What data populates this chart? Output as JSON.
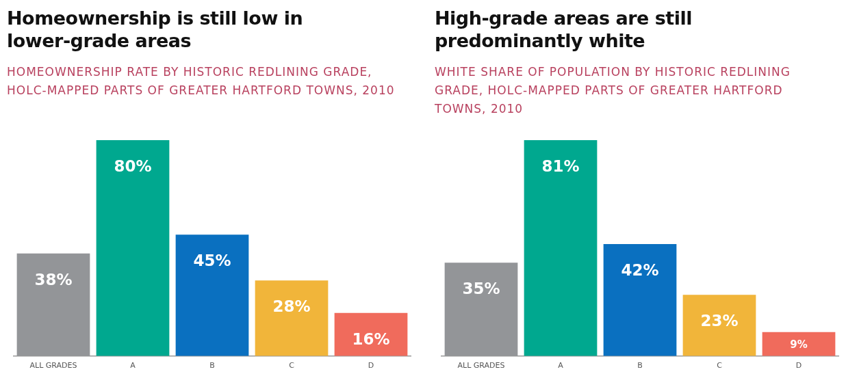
{
  "chart_data": [
    {
      "type": "bar",
      "title": "Homeownership is still low in lower-grade areas",
      "subtitle": "HOMEOWNERSHIP RATE BY HISTORIC REDLINING GRADE, HOLC-MAPPED PARTS OF GREATER HARTFORD TOWNS, 2010",
      "categories": [
        "ALL GRADES",
        "A",
        "B",
        "C",
        "D"
      ],
      "values": [
        38,
        80,
        45,
        28,
        16
      ],
      "value_labels": [
        "38%",
        "80%",
        "45%",
        "28%",
        "16%"
      ],
      "colors": [
        "#939598",
        "#00a88f",
        "#0a70c0",
        "#f1b53a",
        "#f06b5c"
      ],
      "grid": false,
      "legend": false
    },
    {
      "type": "bar",
      "title": "High-grade areas are still predominantly white",
      "subtitle": "WHITE SHARE OF POPULATION BY HISTORIC REDLINING GRADE, HOLC-MAPPED PARTS OF GREATER HARTFORD TOWNS, 2010",
      "categories": [
        "ALL GRADES",
        "A",
        "B",
        "C",
        "D"
      ],
      "values": [
        35,
        81,
        42,
        23,
        9
      ],
      "value_labels": [
        "35%",
        "81%",
        "42%",
        "23%",
        "9%"
      ],
      "colors": [
        "#939598",
        "#00a88f",
        "#0a70c0",
        "#f1b53a",
        "#f06b5c"
      ],
      "grid": false,
      "legend": false
    }
  ]
}
